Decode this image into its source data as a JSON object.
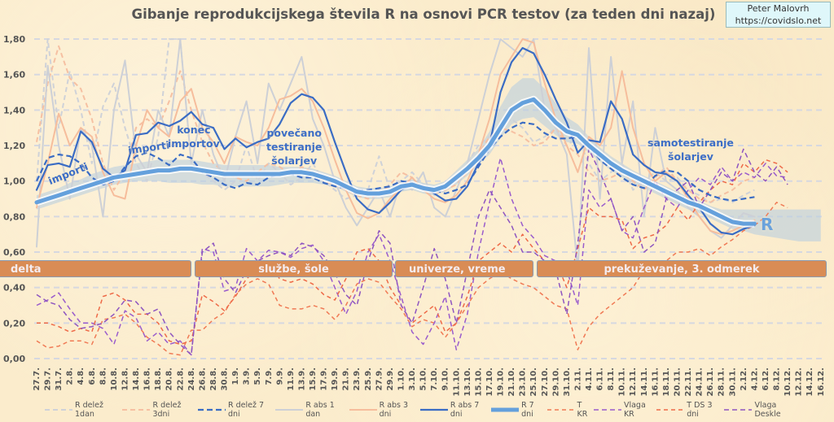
{
  "title": "Gibanje reprodukcijskega števila R na osnovi PCR testov (za teden dni nazaj)",
  "source": {
    "author": "Peter Malovrh",
    "url": "https://covidslo.net"
  },
  "phases": [
    "delta",
    "službe, šole",
    "univerze, vreme",
    "prekuževanje, 3. odmerek"
  ],
  "annotations": {
    "importi_1": "importi",
    "importi_2": "importi",
    "konec_importov": [
      "konec",
      "importov"
    ],
    "povecano": [
      "povečano",
      "testiranje",
      "šolarjev"
    ],
    "samotestiranje": [
      "samotestiranje",
      "šolarjev"
    ],
    "r_label": "R"
  },
  "chart_data": {
    "type": "line",
    "title": "Gibanje reprodukcijskega števila R na osnovi PCR testov (za teden dni nazaj)",
    "ylim": [
      0,
      1.8
    ],
    "yticks": [
      "0,00",
      "0,20",
      "0,40",
      "0,60",
      "0,80",
      "1,00",
      "1,20",
      "1,40",
      "1,60",
      "1,80"
    ],
    "grid": true,
    "legend_position": "bottom",
    "categories": [
      "27.7.",
      "29.7.",
      "31.7.",
      "2.8.",
      "4.8.",
      "6.8.",
      "8.8.",
      "10.8.",
      "12.8.",
      "14.8.",
      "16.8.",
      "18.8.",
      "20.8.",
      "22.8.",
      "24.8.",
      "26.8.",
      "28.8.",
      "30.8.",
      "1.9.",
      "3.9.",
      "5.9.",
      "7.9.",
      "9.9.",
      "11.9.",
      "13.9.",
      "15.9.",
      "17.9.",
      "19.9.",
      "21.9.",
      "23.9.",
      "25.9.",
      "27.9.",
      "29.9.",
      "1.10.",
      "3.10.",
      "5.10.",
      "7.10.",
      "9.10.",
      "11.10.",
      "13.10.",
      "15.10.",
      "17.10.",
      "19.10.",
      "21.10.",
      "23.10.",
      "25.10.",
      "27.10.",
      "29.10.",
      "31.10.",
      "2.11.",
      "4.11.",
      "6.11.",
      "8.11.",
      "10.11.",
      "12.11.",
      "14.11.",
      "16.11.",
      "18.11.",
      "20.11.",
      "22.11.",
      "24.11.",
      "26.11.",
      "28.11.",
      "30.11.",
      "2.12.",
      "4.12.",
      "6.12.",
      "8.12.",
      "10.12.",
      "12.12.",
      "14.12.",
      "16.12."
    ],
    "band": {
      "color": "#b9cfe0",
      "upper": [
        0.92,
        0.94,
        0.96,
        0.99,
        1.01,
        1.04,
        1.06,
        1.08,
        1.09,
        1.1,
        1.11,
        1.12,
        1.12,
        1.12,
        1.12,
        1.11,
        1.1,
        1.09,
        1.09,
        1.09,
        1.09,
        1.09,
        1.08,
        1.08,
        1.08,
        1.07,
        1.05,
        1.03,
        1.0,
        0.97,
        0.96,
        0.96,
        0.97,
        1.0,
        1.01,
        0.99,
        0.98,
        1.0,
        1.06,
        1.12,
        1.18,
        1.28,
        1.42,
        1.53,
        1.58,
        1.58,
        1.52,
        1.44,
        1.36,
        1.32,
        1.25,
        1.19,
        1.14,
        1.1,
        1.06,
        1.03,
        1.0,
        0.97,
        0.94,
        0.91,
        0.89,
        0.86,
        0.84,
        0.84,
        0.84,
        0.84,
        0.84,
        0.84,
        0.84,
        0.84,
        0.84,
        0.84
      ],
      "lower": [
        0.84,
        0.86,
        0.88,
        0.9,
        0.92,
        0.94,
        0.96,
        0.98,
        0.99,
        1.0,
        1.0,
        1.0,
        0.99,
        0.99,
        0.99,
        0.98,
        0.98,
        0.97,
        0.97,
        0.97,
        0.97,
        0.97,
        0.98,
        0.99,
        0.99,
        0.99,
        0.98,
        0.97,
        0.94,
        0.91,
        0.9,
        0.9,
        0.91,
        0.94,
        0.95,
        0.93,
        0.92,
        0.94,
        0.98,
        1.03,
        1.09,
        1.15,
        1.24,
        1.32,
        1.35,
        1.36,
        1.31,
        1.26,
        1.22,
        1.21,
        1.16,
        1.11,
        1.06,
        1.02,
        0.99,
        0.96,
        0.93,
        0.9,
        0.87,
        0.84,
        0.82,
        0.79,
        0.76,
        0.73,
        0.72,
        0.7,
        0.69,
        0.68,
        0.67,
        0.66,
        0.66,
        0.66
      ]
    },
    "series": [
      {
        "name": "R delež 1dan",
        "color": "#cfd2d8",
        "style": "dashed",
        "width": 2,
        "values": [
          1.0,
          1.8,
          1.3,
          1.62,
          1.4,
          1.1,
          1.42,
          1.55,
          1.3,
          1.1,
          1.0,
          1.25,
          1.8,
          1.8,
          1.1,
          1.05,
          1.0,
          0.95,
          1.0,
          1.2,
          1.0,
          1.1,
          1.05,
          0.98,
          1.02,
          1.1,
          1.0,
          0.95,
          0.9,
          0.92,
          0.95,
          1.14,
          0.95,
          1.0,
          1.05,
          0.98,
          0.92,
          0.95,
          1.0,
          1.1,
          1.2,
          1.25,
          1.3,
          1.35,
          1.3,
          1.22,
          1.25,
          1.3,
          1.2,
          1.25,
          1.1,
          1.0,
          1.05,
          1.1,
          0.95,
          1.0,
          1.05,
          1.0,
          1.02,
          0.95,
          0.92,
          0.88,
          0.9,
          0.88,
          0.92,
          0.95,
          null,
          null,
          null,
          null,
          null,
          null
        ]
      },
      {
        "name": "R delež 3dni",
        "color": "#f6c0a2",
        "style": "dashed",
        "width": 2,
        "values": [
          1.22,
          1.55,
          1.76,
          1.58,
          1.52,
          1.35,
          1.1,
          0.95,
          1.05,
          1.3,
          1.35,
          1.3,
          1.45,
          1.62,
          1.4,
          1.22,
          1.1,
          1.05,
          1.02,
          1.0,
          1.05,
          1.1,
          1.08,
          1.04,
          1.08,
          1.05,
          1.0,
          0.98,
          0.95,
          0.92,
          0.9,
          0.92,
          0.98,
          1.05,
          1.02,
          0.95,
          0.93,
          0.95,
          0.98,
          1.05,
          1.15,
          1.25,
          1.3,
          1.28,
          1.25,
          1.2,
          1.22,
          1.3,
          1.2,
          1.15,
          1.05,
          1.0,
          1.02,
          1.05,
          1.0,
          0.95,
          1.02,
          1.08,
          1.0,
          0.95,
          0.9,
          0.88,
          0.92,
          0.95,
          1.0,
          1.02,
          null,
          null,
          null,
          null,
          null,
          null
        ]
      },
      {
        "name": "R abs 1 dan",
        "color": "#cdd0d6",
        "style": "solid",
        "width": 2,
        "values": [
          0.63,
          1.65,
          1.2,
          0.9,
          1.3,
          1.2,
          0.8,
          1.4,
          1.68,
          1.15,
          1.05,
          1.4,
          1.25,
          1.8,
          1.1,
          1.4,
          1.15,
          1.0,
          1.25,
          1.45,
          1.1,
          1.55,
          1.4,
          1.55,
          1.7,
          1.35,
          1.2,
          1.0,
          0.85,
          0.75,
          0.85,
          0.95,
          0.8,
          1.0,
          0.95,
          1.05,
          0.85,
          0.8,
          0.95,
          1.1,
          1.35,
          1.6,
          1.8,
          1.75,
          1.7,
          1.8,
          1.4,
          1.3,
          1.15,
          0.5,
          1.75,
          0.9,
          1.7,
          1.1,
          1.45,
          0.8,
          1.3,
          1.0,
          0.95,
          0.85,
          0.8,
          0.72,
          0.68,
          0.75,
          0.82,
          0.8,
          null,
          null,
          null,
          null,
          null,
          null
        ]
      },
      {
        "name": "R abs 3 dni",
        "color": "#f6bd9c",
        "style": "solid",
        "width": 2,
        "values": [
          0.85,
          1.1,
          1.38,
          1.2,
          1.3,
          1.25,
          1.05,
          0.92,
          0.9,
          1.2,
          1.4,
          1.3,
          1.25,
          1.45,
          1.52,
          1.3,
          1.22,
          1.1,
          1.25,
          1.22,
          1.2,
          1.3,
          1.46,
          1.48,
          1.52,
          1.45,
          1.3,
          1.12,
          0.95,
          0.82,
          0.79,
          0.82,
          0.9,
          0.96,
          1.02,
          0.95,
          0.9,
          0.88,
          0.92,
          1.0,
          1.15,
          1.35,
          1.6,
          1.7,
          1.8,
          1.78,
          1.55,
          1.35,
          1.2,
          1.05,
          1.25,
          1.2,
          1.3,
          1.62,
          1.3,
          1.1,
          1.0,
          1.05,
          1.0,
          0.9,
          0.8,
          0.72,
          0.7,
          0.72,
          0.75,
          0.78,
          null,
          null,
          null,
          null,
          null,
          null
        ]
      },
      {
        "name": "T KR",
        "color": "#f07a55",
        "style": "dashed-thin",
        "width": 1.5,
        "values": [
          0.1,
          0.06,
          0.07,
          0.1,
          0.1,
          0.08,
          0.22,
          0.23,
          0.25,
          0.2,
          0.12,
          0.08,
          0.03,
          0.02,
          0.16,
          0.16,
          0.22,
          0.26,
          0.36,
          0.42,
          0.45,
          0.42,
          0.3,
          0.28,
          0.28,
          0.3,
          0.28,
          0.22,
          0.3,
          0.42,
          0.45,
          0.43,
          0.35,
          0.28,
          0.18,
          0.22,
          0.2,
          0.12,
          0.2,
          0.3,
          0.4,
          0.45,
          0.49,
          0.45,
          0.42,
          0.4,
          0.35,
          0.3,
          0.28,
          0.05,
          0.18,
          0.25,
          0.3,
          0.35,
          0.4,
          0.5,
          0.52,
          0.55,
          0.6,
          0.6,
          0.62,
          0.58,
          0.63,
          0.67,
          0.72,
          0.75,
          0.8,
          0.88,
          0.85,
          null,
          null,
          null
        ]
      },
      {
        "name": "Vlaga KR",
        "color": "#9a5ccc",
        "style": "dashed",
        "width": 1.5,
        "values": [
          0.3,
          0.33,
          0.37,
          0.28,
          0.2,
          0.2,
          0.17,
          0.08,
          0.27,
          0.23,
          0.1,
          0.15,
          0.08,
          0.1,
          0.02,
          0.62,
          0.6,
          0.38,
          0.4,
          0.62,
          0.55,
          0.61,
          0.6,
          0.57,
          0.62,
          0.64,
          0.55,
          0.4,
          0.25,
          0.38,
          0.6,
          0.7,
          0.55,
          0.35,
          0.15,
          0.08,
          0.2,
          0.35,
          0.05,
          0.25,
          0.6,
          0.88,
          1.13,
          0.9,
          0.75,
          0.68,
          0.58,
          0.55,
          0.5,
          0.3,
          0.95,
          0.85,
          0.9,
          0.72,
          0.68,
          0.85,
          1.0,
          0.9,
          0.85,
          0.95,
          1.02,
          0.98,
          1.08,
          1.0,
          1.05,
          1.02,
          1.1,
          1.03,
          1.02,
          null,
          null,
          null
        ]
      },
      {
        "name": "T DS 3 dni",
        "color": "#ee6a48",
        "style": "dashed-thin",
        "width": 1.5,
        "values": [
          0.2,
          0.2,
          0.18,
          0.15,
          0.17,
          0.15,
          0.35,
          0.37,
          0.33,
          0.25,
          0.25,
          0.2,
          0.1,
          0.08,
          0.1,
          0.36,
          0.32,
          0.27,
          0.35,
          0.45,
          0.5,
          0.55,
          0.45,
          0.43,
          0.45,
          0.42,
          0.36,
          0.33,
          0.45,
          0.6,
          0.62,
          0.55,
          0.4,
          0.3,
          0.2,
          0.25,
          0.3,
          0.15,
          0.2,
          0.35,
          0.55,
          0.6,
          0.65,
          0.6,
          0.7,
          0.62,
          0.55,
          0.55,
          0.4,
          0.62,
          0.85,
          0.8,
          0.8,
          0.78,
          0.62,
          0.68,
          0.7,
          0.75,
          0.85,
          0.78,
          0.88,
          0.95,
          1.0,
          0.98,
          1.1,
          1.05,
          1.12,
          1.1,
          1.05,
          null,
          null,
          null
        ]
      },
      {
        "name": "Vlaga Deskle",
        "color": "#8e55c0",
        "style": "dashed",
        "width": 1.5,
        "values": [
          0.36,
          0.32,
          0.3,
          0.22,
          0.17,
          0.18,
          0.2,
          0.25,
          0.33,
          0.32,
          0.25,
          0.28,
          0.15,
          0.08,
          0.02,
          0.6,
          0.65,
          0.45,
          0.37,
          0.5,
          0.55,
          0.58,
          0.6,
          0.58,
          0.65,
          0.63,
          0.58,
          0.48,
          0.36,
          0.3,
          0.55,
          0.72,
          0.65,
          0.3,
          0.2,
          0.4,
          0.62,
          0.45,
          0.2,
          0.5,
          0.8,
          0.95,
          0.85,
          0.75,
          0.6,
          0.6,
          0.55,
          0.5,
          0.25,
          0.65,
          1.18,
          1.05,
          0.9,
          0.72,
          0.8,
          0.6,
          0.65,
          0.9,
          0.95,
          1.0,
          0.85,
          0.95,
          1.05,
          1.0,
          1.18,
          1.05,
          1.0,
          1.08,
          0.98,
          null,
          null,
          null
        ]
      },
      {
        "name": "R delež 7 dni",
        "color": "#3a6cc4",
        "style": "dashed-bold",
        "width": 2.2,
        "values": [
          1.0,
          1.13,
          1.15,
          1.14,
          1.1,
          1.02,
          0.98,
          1.0,
          1.08,
          1.14,
          1.16,
          1.13,
          1.09,
          1.15,
          1.13,
          1.05,
          1.02,
          0.98,
          0.96,
          0.99,
          0.98,
          1.02,
          1.04,
          1.04,
          1.02,
          1.02,
          0.99,
          0.97,
          0.96,
          0.95,
          0.95,
          0.96,
          0.97,
          1.0,
          0.99,
          0.97,
          0.95,
          0.93,
          0.95,
          0.98,
          1.08,
          1.18,
          1.25,
          1.3,
          1.33,
          1.32,
          1.27,
          1.24,
          1.24,
          1.25,
          1.2,
          1.12,
          1.07,
          1.02,
          0.98,
          0.96,
          1.03,
          1.06,
          1.05,
          1.0,
          0.95,
          0.92,
          0.9,
          0.89,
          0.9,
          0.91,
          null,
          null,
          null,
          null,
          null,
          null
        ]
      },
      {
        "name": "R abs 7 dni",
        "color": "#3a6cc4",
        "style": "solid",
        "width": 2.2,
        "values": [
          0.95,
          1.09,
          1.1,
          1.08,
          1.28,
          1.22,
          1.07,
          1.02,
          1.06,
          1.26,
          1.27,
          1.33,
          1.31,
          1.34,
          1.39,
          1.32,
          1.3,
          1.18,
          1.24,
          1.19,
          1.22,
          1.24,
          1.32,
          1.44,
          1.49,
          1.47,
          1.4,
          1.22,
          1.05,
          0.9,
          0.84,
          0.82,
          0.88,
          0.95,
          0.98,
          0.97,
          0.93,
          0.89,
          0.9,
          0.97,
          1.1,
          1.2,
          1.5,
          1.67,
          1.75,
          1.72,
          1.6,
          1.46,
          1.33,
          1.16,
          1.23,
          1.22,
          1.45,
          1.35,
          1.15,
          1.09,
          1.05,
          1.04,
          1.0,
          0.92,
          0.85,
          0.76,
          0.71,
          0.7,
          0.73,
          0.75,
          null,
          null,
          null,
          null,
          null,
          null
        ]
      },
      {
        "name": "R 7 dni",
        "color": "#64a0dc",
        "style": "thick",
        "width": 5,
        "values": [
          0.88,
          0.9,
          0.92,
          0.94,
          0.96,
          0.98,
          1.0,
          1.02,
          1.03,
          1.04,
          1.05,
          1.06,
          1.06,
          1.07,
          1.07,
          1.06,
          1.05,
          1.04,
          1.04,
          1.04,
          1.04,
          1.04,
          1.04,
          1.05,
          1.05,
          1.04,
          1.02,
          1.0,
          0.97,
          0.94,
          0.93,
          0.93,
          0.94,
          0.97,
          0.98,
          0.96,
          0.95,
          0.97,
          1.02,
          1.07,
          1.13,
          1.2,
          1.3,
          1.4,
          1.44,
          1.46,
          1.4,
          1.33,
          1.28,
          1.26,
          1.2,
          1.15,
          1.1,
          1.06,
          1.03,
          1.0,
          0.97,
          0.94,
          0.91,
          0.88,
          0.86,
          0.83,
          0.8,
          0.77,
          0.76,
          0.76,
          null,
          null,
          null,
          null,
          null,
          null
        ]
      }
    ],
    "legend_order": [
      "R delež 1dan",
      "R delež 3dni",
      "R delež 7 dni",
      "R abs 1 dan",
      "R abs 3 dni",
      "R abs 7 dni",
      "R 7 dni",
      "T KR",
      "Vlaga KR",
      "T DS 3 dni",
      "Vlaga Deskle"
    ]
  }
}
